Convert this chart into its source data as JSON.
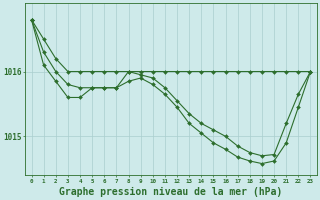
{
  "title": "Graphe pression niveau de la mer (hPa)",
  "background_color": "#ceeaea",
  "line_color": "#2d6e2d",
  "grid_color": "#aacece",
  "x_labels": [
    "0",
    "1",
    "2",
    "3",
    "4",
    "5",
    "6",
    "7",
    "8",
    "9",
    "10",
    "11",
    "12",
    "13",
    "14",
    "15",
    "16",
    "17",
    "18",
    "19",
    "20",
    "21",
    "22",
    "23"
  ],
  "x_values": [
    0,
    1,
    2,
    3,
    4,
    5,
    6,
    7,
    8,
    9,
    10,
    11,
    12,
    13,
    14,
    15,
    16,
    17,
    18,
    19,
    20,
    21,
    22,
    23
  ],
  "series_flat": [
    1016.8,
    1016.5,
    1016.2,
    1016.0,
    1016.0,
    1016.0,
    1016.0,
    1016.0,
    1016.0,
    1016.0,
    1016.0,
    1016.0,
    1016.0,
    1016.0,
    1016.0,
    1016.0,
    1016.0,
    1016.0,
    1016.0,
    1016.0,
    1016.0,
    1016.0,
    1016.0,
    1016.0
  ],
  "series_mid": [
    1016.8,
    1016.3,
    1016.0,
    1015.8,
    1015.75,
    1015.75,
    1015.75,
    1015.75,
    1016.0,
    1015.95,
    1015.9,
    1015.75,
    1015.55,
    1015.35,
    1015.2,
    1015.1,
    1015.0,
    1014.85,
    1014.75,
    1014.7,
    1014.72,
    1015.2,
    1015.65,
    1016.0
  ],
  "series_low": [
    1016.8,
    1016.1,
    1015.85,
    1015.6,
    1015.6,
    1015.75,
    1015.75,
    1015.75,
    1015.85,
    1015.9,
    1015.8,
    1015.65,
    1015.45,
    1015.2,
    1015.05,
    1014.9,
    1014.8,
    1014.68,
    1014.62,
    1014.58,
    1014.62,
    1014.9,
    1015.45,
    1016.0
  ],
  "ylim_min": 1014.4,
  "ylim_max": 1017.05,
  "yticks": [
    1015,
    1016
  ],
  "marker": "D",
  "markersize": 2.0,
  "linewidth": 0.8,
  "title_fontsize": 7.0
}
